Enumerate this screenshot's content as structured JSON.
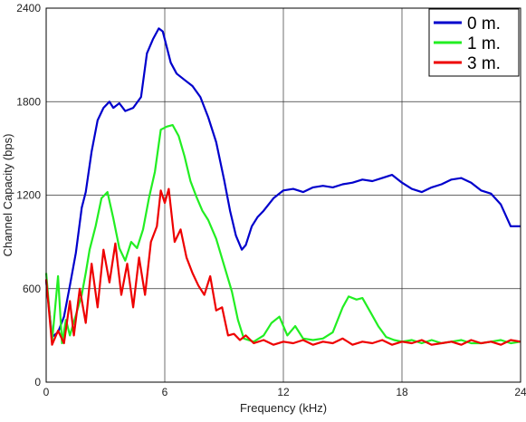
{
  "chart_data": {
    "type": "line",
    "title": "",
    "xlabel": "Frequency (kHz)",
    "ylabel": "Channel Capacity (bps)",
    "xlim": [
      0,
      24
    ],
    "ylim": [
      0,
      2400
    ],
    "xticks": [
      0,
      6,
      12,
      18,
      24
    ],
    "yticks": [
      0,
      600,
      1200,
      1800,
      2400
    ],
    "grid": true,
    "legend": "top-right",
    "series": [
      {
        "name": "0 m.",
        "color": "#0000cc",
        "x": [
          0,
          0.3,
          0.6,
          0.9,
          1.2,
          1.5,
          1.8,
          2.0,
          2.3,
          2.6,
          2.9,
          3.2,
          3.4,
          3.7,
          4.0,
          4.4,
          4.8,
          5.1,
          5.4,
          5.7,
          5.9,
          6.1,
          6.3,
          6.6,
          7.0,
          7.4,
          7.8,
          8.2,
          8.6,
          9.0,
          9.3,
          9.6,
          9.9,
          10.1,
          10.4,
          10.7,
          11.0,
          11.5,
          12.0,
          12.5,
          13.0,
          13.5,
          14.0,
          14.5,
          15.0,
          15.5,
          16.0,
          16.5,
          17.0,
          17.5,
          18.0,
          18.5,
          19.0,
          19.5,
          20.0,
          20.5,
          21.0,
          21.5,
          22.0,
          22.5,
          23.0,
          23.5,
          24.0
        ],
        "values": [
          650,
          290,
          320,
          420,
          620,
          830,
          1120,
          1220,
          1480,
          1680,
          1760,
          1800,
          1760,
          1790,
          1740,
          1760,
          1830,
          2110,
          2200,
          2270,
          2250,
          2150,
          2050,
          1980,
          1940,
          1900,
          1830,
          1700,
          1540,
          1300,
          1100,
          940,
          850,
          880,
          1000,
          1060,
          1100,
          1180,
          1230,
          1240,
          1220,
          1250,
          1260,
          1250,
          1270,
          1280,
          1300,
          1290,
          1310,
          1330,
          1280,
          1240,
          1220,
          1250,
          1270,
          1300,
          1310,
          1280,
          1230,
          1210,
          1140,
          1000,
          1000
        ]
      },
      {
        "name": "1 m.",
        "color": "#22ee22",
        "x": [
          0,
          0.3,
          0.6,
          0.8,
          1.0,
          1.2,
          1.5,
          1.8,
          2.0,
          2.2,
          2.5,
          2.8,
          3.1,
          3.4,
          3.7,
          4.0,
          4.3,
          4.6,
          4.9,
          5.2,
          5.5,
          5.8,
          6.1,
          6.4,
          6.7,
          7.0,
          7.3,
          7.6,
          7.9,
          8.2,
          8.6,
          9.0,
          9.4,
          9.7,
          10.0,
          10.5,
          11.0,
          11.4,
          11.8,
          12.2,
          12.6,
          13.0,
          13.5,
          14.0,
          14.5,
          15.0,
          15.3,
          15.7,
          16.0,
          16.4,
          16.8,
          17.2,
          17.6,
          18.0,
          18.5,
          19.0,
          19.5,
          20.0,
          20.5,
          21.0,
          21.5,
          22.0,
          22.5,
          23.0,
          23.5,
          24.0
        ],
        "values": [
          700,
          260,
          680,
          250,
          400,
          300,
          430,
          560,
          700,
          850,
          1000,
          1180,
          1220,
          1050,
          860,
          780,
          900,
          860,
          980,
          1180,
          1350,
          1620,
          1640,
          1650,
          1580,
          1450,
          1290,
          1190,
          1100,
          1040,
          920,
          750,
          580,
          400,
          280,
          260,
          300,
          380,
          420,
          300,
          360,
          280,
          270,
          280,
          320,
          480,
          550,
          530,
          540,
          450,
          360,
          290,
          270,
          260,
          270,
          250,
          270,
          250,
          260,
          270,
          250,
          250,
          260,
          270,
          250,
          260
        ]
      },
      {
        "name": "3 m.",
        "color": "#ee0000",
        "x": [
          0,
          0.3,
          0.6,
          0.9,
          1.2,
          1.4,
          1.7,
          2.0,
          2.3,
          2.6,
          2.9,
          3.2,
          3.5,
          3.8,
          4.1,
          4.4,
          4.7,
          5.0,
          5.3,
          5.6,
          5.8,
          6.0,
          6.2,
          6.5,
          6.8,
          7.1,
          7.4,
          7.7,
          8.0,
          8.3,
          8.6,
          8.9,
          9.2,
          9.5,
          9.8,
          10.1,
          10.5,
          11.0,
          11.5,
          12.0,
          12.5,
          13.0,
          13.5,
          14.0,
          14.5,
          15.0,
          15.5,
          16.0,
          16.5,
          17.0,
          17.5,
          18.0,
          18.5,
          19.0,
          19.5,
          20.0,
          20.5,
          21.0,
          21.5,
          22.0,
          22.5,
          23.0,
          23.5,
          24.0
        ],
        "values": [
          660,
          240,
          330,
          250,
          520,
          300,
          600,
          380,
          760,
          480,
          850,
          640,
          890,
          560,
          760,
          480,
          800,
          560,
          900,
          1000,
          1230,
          1150,
          1240,
          900,
          980,
          800,
          700,
          620,
          560,
          680,
          460,
          480,
          300,
          310,
          270,
          300,
          250,
          270,
          240,
          260,
          250,
          270,
          240,
          260,
          250,
          280,
          240,
          260,
          250,
          270,
          240,
          260,
          250,
          270,
          240,
          250,
          260,
          240,
          270,
          250,
          260,
          240,
          270,
          260
        ]
      }
    ]
  }
}
